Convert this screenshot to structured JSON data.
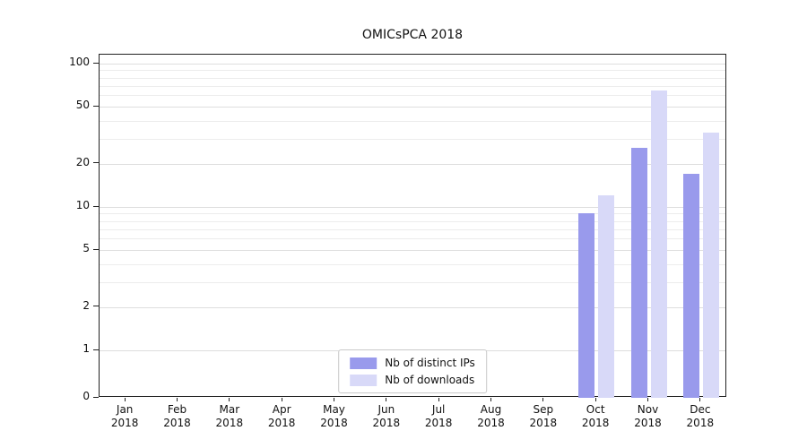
{
  "figure": {
    "title": "OMICsPCA 2018"
  },
  "chart_data": {
    "type": "bar",
    "title": "OMICsPCA 2018",
    "categories": [
      "Jan 2018",
      "Feb 2018",
      "Mar 2018",
      "Apr 2018",
      "May 2018",
      "Jun 2018",
      "Jul 2018",
      "Aug 2018",
      "Sep 2018",
      "Oct 2018",
      "Nov 2018",
      "Dec 2018"
    ],
    "series": [
      {
        "name": "Nb of distinct IPs",
        "color": "#999aec",
        "values": [
          0,
          0,
          0,
          0,
          0,
          0,
          0,
          0,
          0,
          9,
          26,
          17
        ]
      },
      {
        "name": "Nb of downloads",
        "color": "#d8d9f8",
        "values": [
          0,
          0,
          0,
          0,
          0,
          0,
          0,
          0,
          0,
          12,
          65,
          33
        ]
      }
    ],
    "yscale": "symlog",
    "yticks": [
      0,
      1,
      2,
      5,
      10,
      20,
      50,
      100
    ],
    "minor_gridlines": [
      3,
      4,
      6,
      7,
      8,
      9,
      30,
      40,
      60,
      70,
      80,
      90
    ],
    "ylim": [
      0,
      115
    ],
    "grid": "on",
    "legend_position": "lower center",
    "colors": {
      "axis": "#222222",
      "grid_major": "#dedede",
      "grid_minor": "#ececec",
      "background": "#ffffff"
    }
  }
}
